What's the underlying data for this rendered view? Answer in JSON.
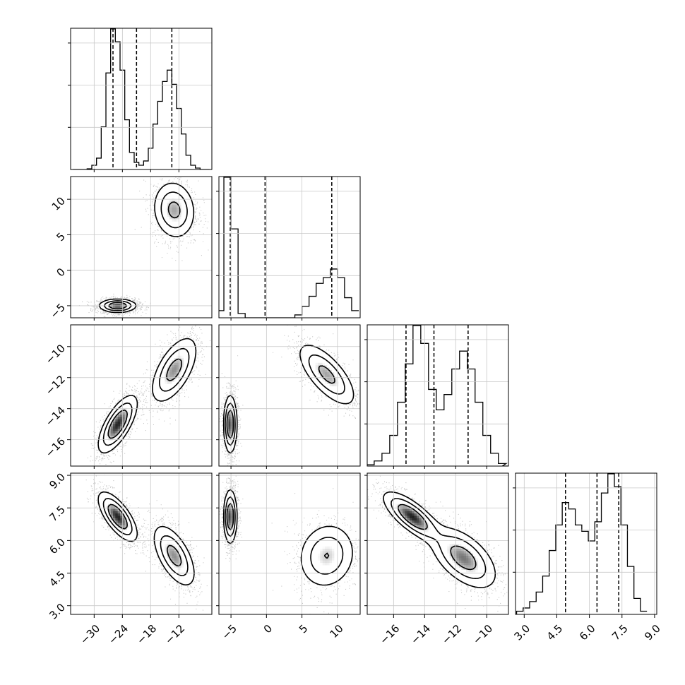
{
  "chart_data": {
    "type": "corner",
    "grid": true,
    "parameters": [
      {
        "range": [
          -35,
          -5
        ],
        "ticks": [
          "−30",
          "−24",
          "−18",
          "−12"
        ],
        "tick_values": [
          -30,
          -24,
          -18,
          -12
        ],
        "quantiles": [
          -26,
          -21,
          -13.5
        ]
      },
      {
        "range": [
          -6.7,
          13.2
        ],
        "ticks": [
          "−5",
          "0",
          "5",
          "10"
        ],
        "tick_values": [
          -5,
          0,
          5,
          10
        ],
        "quantiles": [
          -5.1,
          -0.2,
          9.2
        ]
      },
      {
        "range": [
          -17.7,
          -8.6
        ],
        "ticks": [
          "−16",
          "−14",
          "−12",
          "−10"
        ],
        "tick_values": [
          -16,
          -14,
          -12,
          -10
        ],
        "quantiles": [
          -15.2,
          -13.4,
          -11.2
        ]
      },
      {
        "range": [
          2.6,
          9.1
        ],
        "ticks": [
          "3.0",
          "4.5",
          "6.0",
          "7.5",
          "9.0"
        ],
        "tick_values": [
          3.0,
          4.5,
          6.0,
          7.5,
          9.0
        ],
        "quantiles": [
          4.9,
          6.35,
          7.35
        ]
      }
    ],
    "histograms": [
      {
        "bins": [
          -34,
          -33,
          -32,
          -31,
          -30,
          -29,
          -28,
          -27,
          -26,
          -25,
          -24,
          -23,
          -22,
          -21,
          -20,
          -19,
          -18,
          -17,
          -16,
          -15,
          -14,
          -13,
          -12,
          -11,
          -10,
          -9,
          -8,
          -7,
          -6
        ],
        "counts": [
          0,
          0,
          0,
          0.5,
          3,
          8,
          30,
          68,
          99,
          90,
          70,
          35,
          12,
          5,
          3,
          6,
          15,
          32,
          48,
          62,
          70,
          60,
          43,
          25,
          10,
          3,
          1,
          0,
          0
        ]
      },
      {
        "bins": [
          -6.5,
          -5.5,
          -4.5,
          -3.5,
          -2.5,
          -1.5,
          -0.5,
          0.5,
          1.5,
          2.5,
          3.5,
          4.5,
          5.5,
          6.5,
          7.5,
          8.5,
          9.5,
          10.5,
          11.5,
          12.5
        ],
        "counts": [
          5,
          98,
          62,
          3,
          0,
          0,
          0,
          0,
          0,
          0,
          0,
          2,
          8,
          15,
          24,
          28,
          34,
          28,
          14,
          5
        ]
      },
      {
        "bins": [
          -17.5,
          -17,
          -16.5,
          -16,
          -15.5,
          -15,
          -14.5,
          -14,
          -13.5,
          -13,
          -12.5,
          -12,
          -11.5,
          -11,
          -10.5,
          -10,
          -9.5,
          -9,
          -8.75
        ],
        "counts": [
          0.5,
          2,
          5,
          12,
          25,
          40,
          55,
          48,
          30,
          22,
          28,
          38,
          45,
          38,
          25,
          12,
          5,
          1,
          0
        ]
      },
      {
        "bins": [
          2.8,
          3.1,
          3.4,
          3.7,
          4.0,
          4.3,
          4.6,
          4.9,
          5.2,
          5.5,
          5.8,
          6.1,
          6.4,
          6.7,
          7.0,
          7.3,
          7.6,
          7.9,
          8.2,
          8.5,
          8.8
        ],
        "counts": [
          1,
          2,
          4,
          7,
          12,
          20,
          28,
          35,
          33,
          28,
          26,
          23,
          29,
          38,
          44,
          40,
          28,
          15,
          5,
          1
        ]
      }
    ],
    "panels_2d": [
      {
        "x_param": 0,
        "y_param": 1,
        "clusters": [
          {
            "cx": -25,
            "cy": -5,
            "sx": 1.9,
            "sy": 0.45,
            "rho": 0,
            "w": 1
          },
          {
            "cx": -13,
            "cy": 8.5,
            "sx": 2.2,
            "sy": 2.0,
            "rho": -0.1,
            "w": 0.7
          }
        ]
      },
      {
        "x_param": 0,
        "y_param": 2,
        "clusters": [
          {
            "cx": -25,
            "cy": -15,
            "sx": 2.0,
            "sy": 0.9,
            "rho": 0.7,
            "w": 1
          },
          {
            "cx": -13,
            "cy": -11.5,
            "sx": 2.4,
            "sy": 1.05,
            "rho": 0.6,
            "w": 0.75
          }
        ]
      },
      {
        "x_param": 1,
        "y_param": 2,
        "clusters": [
          {
            "cx": -5.1,
            "cy": -15,
            "sx": 0.45,
            "sy": 0.9,
            "rho": 0,
            "w": 1
          },
          {
            "cx": 8.5,
            "cy": -11.8,
            "sx": 2.0,
            "sy": 1.0,
            "rho": -0.7,
            "w": 0.7
          }
        ]
      },
      {
        "x_param": 0,
        "y_param": 3,
        "clusters": [
          {
            "cx": -25,
            "cy": 7.1,
            "sx": 2.0,
            "sy": 0.55,
            "rho": -0.7,
            "w": 1
          },
          {
            "cx": -13,
            "cy": 5.3,
            "sx": 2.2,
            "sy": 0.7,
            "rho": -0.6,
            "w": 0.75
          }
        ]
      },
      {
        "x_param": 1,
        "y_param": 3,
        "clusters": [
          {
            "cx": -5.1,
            "cy": 7.1,
            "sx": 0.45,
            "sy": 0.6,
            "rho": 0,
            "w": 1
          },
          {
            "cx": 8.5,
            "cy": 5.3,
            "sx": 2.0,
            "sy": 0.75,
            "rho": 0.1,
            "w": 0.6
          }
        ]
      },
      {
        "x_param": 2,
        "y_param": 3,
        "clusters": [
          {
            "cx": -14.8,
            "cy": 7.1,
            "sx": 0.9,
            "sy": 0.55,
            "rho": -0.75,
            "w": 1
          },
          {
            "cx": -11.5,
            "cy": 5.2,
            "sx": 1.05,
            "sy": 0.7,
            "rho": -0.55,
            "w": 0.8
          }
        ]
      }
    ]
  }
}
